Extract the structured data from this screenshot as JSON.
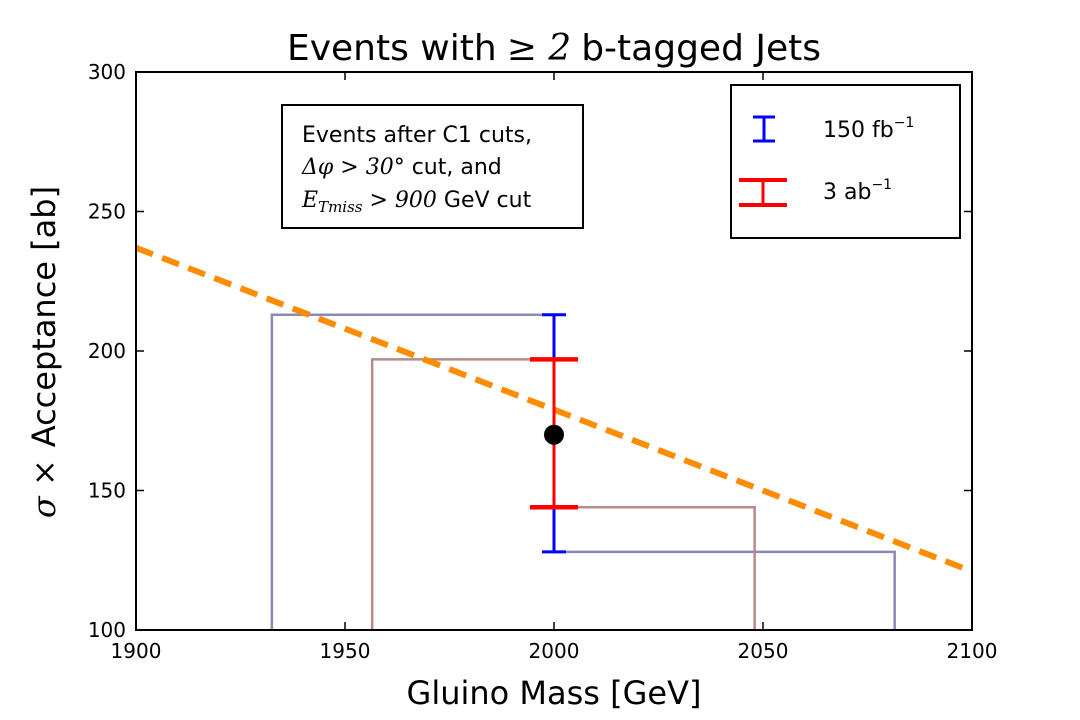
{
  "chart_data": {
    "type": "scatter",
    "title": "Events with ≥2 b-tagged Jets",
    "title_prefix": "Events with",
    "title_math": "≥ 2",
    "title_suffix": "b-tagged Jets",
    "xlabel": "Gluino Mass [GeV]",
    "ylabel": "σ ×  Acceptance [ab]",
    "ylabel_math": "σ ×",
    "ylabel_text": "Acceptance [ab]",
    "xlim": [
      1900,
      2100
    ],
    "ylim": [
      100,
      300
    ],
    "x_ticks": [
      1900,
      1950,
      2000,
      2050,
      2100
    ],
    "y_ticks": [
      100,
      150,
      200,
      250,
      300
    ],
    "grid": false,
    "theory_curve": {
      "style": "dashed",
      "color": "#ff8c00",
      "x": [
        1900,
        2100
      ],
      "y": [
        237,
        121
      ]
    },
    "data_point": {
      "x": 2000,
      "y": 170,
      "color": "#000000"
    },
    "error_bars": [
      {
        "name": "150 fb⁻¹",
        "color": "#0000ff",
        "low": 128,
        "high": 213
      },
      {
        "name": "3 ab⁻¹",
        "color": "#ff0000",
        "low": 144,
        "high": 197
      }
    ],
    "projection_boxes": [
      {
        "color": "#8a8ab8",
        "x_left": 1932.5,
        "y_top": 213,
        "x_right": 2081.5,
        "y_bottom": 128
      },
      {
        "color": "#b88a8a",
        "x_left": 1956.5,
        "y_top": 197,
        "x_right": 2048,
        "y_bottom": 144
      }
    ],
    "annotation": {
      "line1": "Events after C1 cuts,",
      "line2_math": "Δφ > 30°",
      "line2_text": " cut, and",
      "line3_math": "E",
      "line3_sub": "Tmiss",
      "line3_math2": " > 900",
      "line3_text": " GeV cut"
    },
    "legend": {
      "position": "top-right",
      "entries": [
        {
          "label": "150 fb",
          "sup": "−1",
          "color": "#0000ff"
        },
        {
          "label": "3 ab",
          "sup": "−1",
          "color": "#ff0000"
        }
      ]
    }
  }
}
